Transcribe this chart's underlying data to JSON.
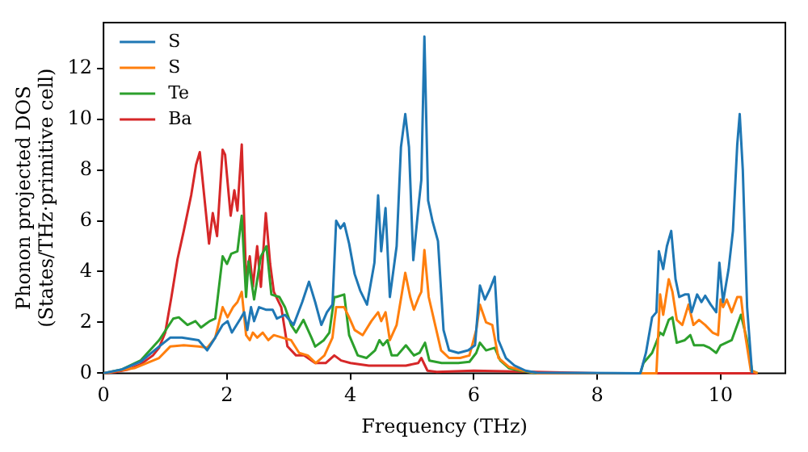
{
  "chart_data": {
    "type": "line",
    "xlabel": "Frequency (THz)",
    "ylabel": "Phonon projected DOS\n(States/THz·primitive cell)",
    "xlim": [
      0,
      11.05
    ],
    "ylim": [
      0,
      13.8
    ],
    "xticks": [
      0,
      2,
      4,
      6,
      8,
      10
    ],
    "yticks": [
      0,
      2,
      4,
      6,
      8,
      10,
      12
    ],
    "grid": false,
    "legend": "top left",
    "marker": "none",
    "line_style": "solid",
    "series": [
      {
        "name": "S",
        "color": "#1f77b4",
        "x": [
          0,
          0.3,
          0.6,
          0.9,
          1.08,
          1.27,
          1.54,
          1.68,
          1.81,
          1.93,
          2.01,
          2.08,
          2.22,
          2.28,
          2.33,
          2.39,
          2.44,
          2.52,
          2.63,
          2.74,
          2.81,
          2.94,
          3.08,
          3.22,
          3.33,
          3.43,
          3.53,
          3.62,
          3.71,
          3.77,
          3.84,
          3.9,
          3.98,
          4.07,
          4.16,
          4.27,
          4.39,
          4.45,
          4.5,
          4.57,
          4.64,
          4.75,
          4.82,
          4.89,
          4.95,
          5.02,
          5.11,
          5.15,
          5.2,
          5.26,
          5.33,
          5.42,
          5.51,
          5.6,
          5.75,
          5.91,
          6.02,
          6.1,
          6.18,
          6.26,
          6.34,
          6.4,
          6.52,
          6.66,
          6.84,
          7.02,
          8.7,
          8.79,
          8.89,
          8.96,
          9.0,
          9.07,
          9.13,
          9.2,
          9.27,
          9.33,
          9.42,
          9.48,
          9.53,
          9.62,
          9.69,
          9.75,
          9.84,
          9.93,
          9.98,
          10.04,
          10.13,
          10.2,
          10.27,
          10.31,
          10.36,
          10.43,
          10.51
        ],
        "values": [
          0,
          0.15,
          0.45,
          1.05,
          1.4,
          1.4,
          1.3,
          0.9,
          1.4,
          1.9,
          2.05,
          1.6,
          2.15,
          2.4,
          1.7,
          2.6,
          2.05,
          2.6,
          2.5,
          2.5,
          2.15,
          2.3,
          1.9,
          2.8,
          3.6,
          2.8,
          1.9,
          2.4,
          2.7,
          6.0,
          5.7,
          5.9,
          5.1,
          3.9,
          3.25,
          2.7,
          4.35,
          7.0,
          4.8,
          6.5,
          3.0,
          5.0,
          8.9,
          10.2,
          8.9,
          4.45,
          6.7,
          7.6,
          13.25,
          6.8,
          6.0,
          5.2,
          1.7,
          0.9,
          0.8,
          0.9,
          1.1,
          3.45,
          2.9,
          3.3,
          3.8,
          1.3,
          0.6,
          0.3,
          0.1,
          0.02,
          0,
          0.8,
          2.2,
          2.4,
          4.8,
          4.1,
          5.0,
          5.6,
          3.7,
          3.0,
          3.1,
          3.1,
          2.4,
          3.1,
          2.8,
          3.05,
          2.7,
          2.4,
          4.35,
          2.8,
          4.1,
          5.6,
          9.0,
          10.2,
          8.0,
          2.6,
          0
        ]
      },
      {
        "name": "S",
        "color": "#ff7f0e",
        "x": [
          0,
          0.5,
          0.9,
          1.08,
          1.3,
          1.54,
          1.68,
          1.81,
          1.93,
          2.01,
          2.1,
          2.17,
          2.24,
          2.31,
          2.37,
          2.42,
          2.49,
          2.58,
          2.67,
          2.76,
          2.9,
          3.04,
          3.17,
          3.31,
          3.44,
          3.58,
          3.71,
          3.77,
          3.9,
          3.98,
          4.07,
          4.2,
          4.34,
          4.45,
          4.5,
          4.57,
          4.64,
          4.75,
          4.89,
          4.97,
          5.03,
          5.11,
          5.15,
          5.2,
          5.27,
          5.36,
          5.47,
          5.6,
          5.78,
          5.93,
          6.04,
          6.1,
          6.2,
          6.3,
          6.4,
          6.57,
          6.8,
          7.02,
          8,
          8.96,
          9.02,
          9.07,
          9.16,
          9.22,
          9.29,
          9.38,
          9.48,
          9.56,
          9.65,
          9.75,
          9.87,
          9.96,
          10.0,
          10.04,
          10.1,
          10.18,
          10.27,
          10.33,
          10.4,
          10.49,
          10.6
        ],
        "values": [
          0,
          0.2,
          0.6,
          1.05,
          1.1,
          1.05,
          1.0,
          1.4,
          2.6,
          2.2,
          2.6,
          2.8,
          3.2,
          1.5,
          1.3,
          1.6,
          1.4,
          1.6,
          1.3,
          1.5,
          1.4,
          1.3,
          0.8,
          0.7,
          0.4,
          0.7,
          1.4,
          2.6,
          2.6,
          2.2,
          1.7,
          1.5,
          2.05,
          2.4,
          2.05,
          2.4,
          1.3,
          1.9,
          3.95,
          3.0,
          2.5,
          3.0,
          3.2,
          4.85,
          3.0,
          2.05,
          0.9,
          0.6,
          0.6,
          0.7,
          1.7,
          2.7,
          2.0,
          1.9,
          0.6,
          0.25,
          0.1,
          0,
          0,
          0,
          3.1,
          2.3,
          3.7,
          3.2,
          2.1,
          1.9,
          2.7,
          1.9,
          2.1,
          1.9,
          1.6,
          1.5,
          2.9,
          2.6,
          2.9,
          2.4,
          3.0,
          3.0,
          1.5,
          0.1,
          0
        ]
      },
      {
        "name": "Te",
        "color": "#2ca02c",
        "x": [
          0,
          0.3,
          0.6,
          0.9,
          1.13,
          1.22,
          1.36,
          1.49,
          1.58,
          1.72,
          1.81,
          1.93,
          2.0,
          2.07,
          2.17,
          2.24,
          2.31,
          2.35,
          2.44,
          2.55,
          2.64,
          2.72,
          2.85,
          2.94,
          3.04,
          3.12,
          3.24,
          3.37,
          3.43,
          3.57,
          3.66,
          3.74,
          3.77,
          3.9,
          3.98,
          4.12,
          4.26,
          4.4,
          4.47,
          4.53,
          4.6,
          4.67,
          4.76,
          4.9,
          5.03,
          5.12,
          5.21,
          5.28,
          5.48,
          5.75,
          5.93,
          6.04,
          6.1,
          6.2,
          6.34,
          6.43,
          6.57,
          6.75,
          7.02,
          8,
          8.7,
          8.75,
          8.89,
          9.02,
          9.07,
          9.16,
          9.22,
          9.29,
          9.42,
          9.51,
          9.57,
          9.73,
          9.82,
          9.93,
          10.0,
          10.18,
          10.33,
          10.42,
          10.51,
          10.6
        ],
        "values": [
          0,
          0.15,
          0.5,
          1.3,
          2.15,
          2.2,
          1.9,
          2.05,
          1.8,
          2.05,
          2.15,
          4.6,
          4.3,
          4.7,
          4.8,
          6.2,
          3.0,
          4.4,
          2.9,
          4.6,
          5.0,
          3.1,
          3.0,
          2.6,
          1.9,
          1.6,
          2.1,
          1.4,
          1.05,
          1.3,
          1.6,
          3.0,
          3.0,
          3.1,
          1.5,
          0.7,
          0.6,
          0.9,
          1.3,
          1.1,
          1.3,
          0.7,
          0.7,
          1.1,
          0.7,
          0.8,
          1.2,
          0.5,
          0.4,
          0.4,
          0.45,
          0.8,
          1.2,
          0.9,
          1.0,
          0.5,
          0.2,
          0.1,
          0,
          0,
          0,
          0.4,
          0.8,
          1.6,
          1.5,
          2.1,
          2.2,
          1.2,
          1.3,
          1.5,
          1.1,
          1.1,
          1.0,
          0.8,
          1.1,
          1.3,
          2.3,
          1.4,
          0.1,
          0
        ]
      },
      {
        "name": "Ba",
        "color": "#d62728",
        "x": [
          0,
          0.2,
          0.4,
          0.6,
          0.8,
          0.9,
          1.0,
          1.1,
          1.2,
          1.3,
          1.42,
          1.5,
          1.56,
          1.71,
          1.77,
          1.84,
          1.93,
          1.97,
          2.06,
          2.12,
          2.17,
          2.24,
          2.31,
          2.37,
          2.42,
          2.49,
          2.55,
          2.63,
          2.7,
          2.76,
          2.88,
          2.98,
          3.12,
          3.25,
          3.43,
          3.6,
          3.74,
          3.85,
          4.0,
          4.3,
          4.6,
          4.9,
          5.1,
          5.15,
          5.25,
          5.4,
          6.0,
          7.0,
          8.0,
          10.6
        ],
        "values": [
          0,
          0.05,
          0.15,
          0.35,
          0.7,
          1.0,
          1.6,
          3.0,
          4.5,
          5.6,
          7.0,
          8.2,
          8.7,
          5.1,
          6.3,
          5.4,
          8.8,
          8.6,
          6.2,
          7.2,
          6.4,
          9.0,
          3.7,
          4.6,
          3.4,
          5.0,
          3.4,
          6.3,
          4.3,
          3.2,
          2.6,
          1.06,
          0.7,
          0.7,
          0.4,
          0.4,
          0.7,
          0.5,
          0.4,
          0.3,
          0.3,
          0.3,
          0.4,
          0.6,
          0.1,
          0.05,
          0.1,
          0.05,
          0,
          0
        ]
      }
    ]
  }
}
